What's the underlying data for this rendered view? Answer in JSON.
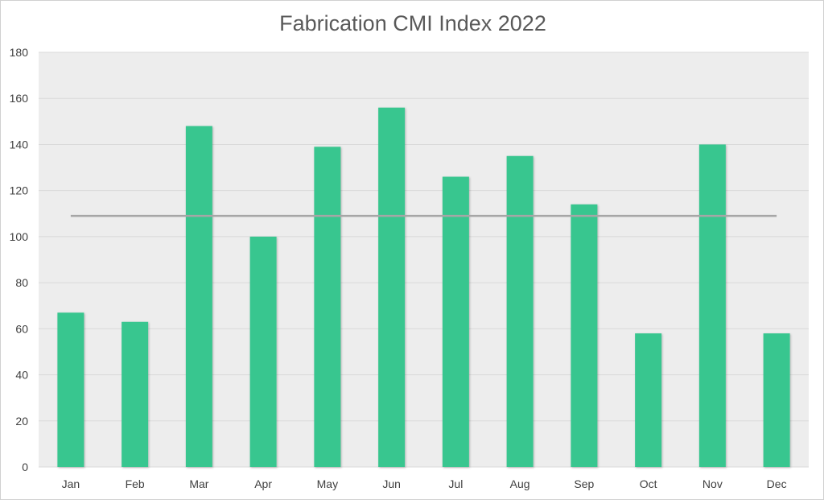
{
  "chart_data": {
    "type": "bar",
    "title": "Fabrication CMI Index 2022",
    "categories": [
      "Jan",
      "Feb",
      "Mar",
      "Apr",
      "May",
      "Jun",
      "Jul",
      "Aug",
      "Sep",
      "Oct",
      "Nov",
      "Dec"
    ],
    "values": [
      67,
      63,
      148,
      100,
      139,
      156,
      126,
      135,
      114,
      58,
      140,
      58
    ],
    "average_line": 109,
    "ylim": [
      0,
      180
    ],
    "yticks": [
      0,
      20,
      40,
      60,
      80,
      100,
      120,
      140,
      160,
      180
    ],
    "xlabel": "",
    "ylabel": "",
    "grid": true,
    "legend": "none",
    "colors": {
      "bar": "#38c68f",
      "average_line": "#a6a6a6",
      "plot_background": "#ededed",
      "gridline": "#d9d9d9"
    }
  }
}
